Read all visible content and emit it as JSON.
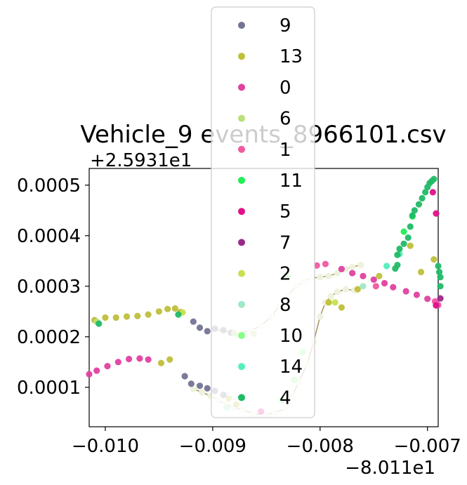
{
  "chart_data": {
    "type": "scatter",
    "title": "Vehicle_9 events_8966101.csv",
    "x_offset_label": "−8.011e1",
    "y_offset_label": "+2.5931e1",
    "xlim": [
      -0.01015,
      -0.0069
    ],
    "ylim": [
      2.2e-05,
      0.000533
    ],
    "x_ticks": [
      {
        "value": -0.01,
        "label": "−0.010"
      },
      {
        "value": -0.009,
        "label": "−0.009"
      },
      {
        "value": -0.008,
        "label": "−0.008"
      },
      {
        "value": -0.007,
        "label": "−0.007"
      }
    ],
    "y_ticks": [
      {
        "value": 0.0001,
        "label": "0.0001"
      },
      {
        "value": 0.0002,
        "label": "0.0002"
      },
      {
        "value": 0.0003,
        "label": "0.0003"
      },
      {
        "value": 0.0004,
        "label": "0.0004"
      },
      {
        "value": 0.0005,
        "label": "0.0005"
      }
    ],
    "grid": false,
    "legend_position": "top-center",
    "route_line_color": "#a89a6a",
    "series": [
      {
        "name": "9",
        "color": "#737394",
        "points": [
          [
            -0.00883,
            0.000208
          ],
          [
            -0.0089,
            0.000213
          ],
          [
            -0.00898,
            0.000216
          ],
          [
            -0.00905,
            0.000211
          ],
          [
            -0.00912,
            0.000218
          ],
          [
            -0.00918,
            0.00023
          ],
          [
            -0.00926,
            0.000122
          ],
          [
            -0.0092,
            0.000107
          ],
          [
            -0.00912,
            0.000103
          ],
          [
            -0.00905,
            9.8e-05
          ],
          [
            -0.00898,
            9.3e-05
          ],
          [
            -0.0089,
            8.5e-05
          ]
        ]
      },
      {
        "name": "13",
        "color": "#bfbf3a",
        "points": [
          [
            -0.0101,
            0.000233
          ],
          [
            -0.01,
            0.000238
          ],
          [
            -0.0099,
            0.000238
          ],
          [
            -0.0098,
            0.00024
          ],
          [
            -0.0097,
            0.000241
          ],
          [
            -0.0096,
            0.000244
          ],
          [
            -0.0095,
            0.00025
          ],
          [
            -0.00942,
            0.000255
          ],
          [
            -0.00935,
            0.000256
          ],
          [
            -0.0093,
            0.000249
          ],
          [
            -0.0094,
            0.000155
          ],
          [
            -0.00948,
            0.000148
          ],
          [
            -0.00885,
            7.8e-05
          ],
          [
            -0.00878,
            6.6e-05
          ],
          [
            -0.00792,
            0.000268
          ],
          [
            -0.0078,
            0.000258
          ],
          [
            -0.00765,
            0.000294
          ],
          [
            -0.00745,
            0.00032
          ],
          [
            -0.00716,
            0.00038
          ],
          [
            -0.00706,
            0.000328
          ],
          [
            -0.00694,
            0.000353
          ]
        ]
      },
      {
        "name": "0",
        "color": "#e040a0",
        "points": [
          [
            -0.01015,
            0.000126
          ],
          [
            -0.01008,
            0.000133
          ],
          [
            -0.00998,
            0.000142
          ],
          [
            -0.00988,
            0.00015
          ],
          [
            -0.00978,
            0.000156
          ],
          [
            -0.00968,
            0.000157
          ],
          [
            -0.0096,
            0.000155
          ],
          [
            -0.0078,
            0.000334
          ],
          [
            -0.0077,
            0.000326
          ],
          [
            -0.0076,
            0.00032
          ],
          [
            -0.0075,
            0.000313
          ],
          [
            -0.0074,
            0.000306
          ],
          [
            -0.00732,
            0.000298
          ],
          [
            -0.0072,
            0.00029
          ],
          [
            -0.0071,
            0.000283
          ],
          [
            -0.007,
            0.000275
          ],
          [
            -0.00692,
            0.000268
          ]
        ]
      },
      {
        "name": "6",
        "color": "#b9e07a",
        "points": [
          [
            -0.01008,
            0.00023
          ],
          [
            -0.0088,
            0.000207
          ],
          [
            -0.00862,
            0.000206
          ]
        ]
      },
      {
        "name": "1",
        "color": "#f05aa0",
        "points": [
          [
            -0.00803,
            0.000341
          ],
          [
            -0.00795,
            0.000344
          ],
          [
            -0.00748,
            0.0003
          ],
          [
            -0.00693,
            0.00027
          ],
          [
            -0.0069,
            0.000263
          ]
        ]
      },
      {
        "name": "11",
        "color": "#22ee55",
        "points": [
          [
            -0.00722,
            0.000408
          ],
          [
            -0.00714,
            0.000438
          ]
        ]
      },
      {
        "name": "5",
        "color": "#e0108a",
        "points": [
          [
            -0.00695,
            0.000486
          ],
          [
            -0.00692,
            0.000444
          ],
          [
            -0.00692,
            0.000262
          ],
          [
            -0.00855,
            5.2e-05
          ]
        ]
      },
      {
        "name": "7",
        "color": "#9a2a8a",
        "points": [
          [
            -0.00688,
            0.000276
          ]
        ]
      },
      {
        "name": "2",
        "color": "#c8e050",
        "points": [
          [
            -0.00928,
            0.000248
          ],
          [
            -0.00786,
            0.000268
          ]
        ]
      },
      {
        "name": "8",
        "color": "#a0e8c8",
        "points": [
          [
            -0.0076,
            0.0003
          ],
          [
            -0.00887,
            6e-05
          ]
        ]
      },
      {
        "name": "10",
        "color": "#88ff88",
        "points": [
          [
            -0.0083,
            0.00032
          ],
          [
            -0.00816,
            0.00017
          ],
          [
            -0.00824,
            0.000115
          ],
          [
            -0.00836,
            7.5e-05
          ]
        ]
      },
      {
        "name": "14",
        "color": "#55eebb",
        "points": [
          [
            -0.00738,
            0.00034
          ],
          [
            -0.00726,
            0.000364
          ]
        ]
      },
      {
        "name": "4",
        "color": "#20bb66",
        "points": [
          [
            -0.01006,
            0.000226
          ],
          [
            -0.00932,
            0.000244
          ],
          [
            -0.0073,
            0.000335
          ],
          [
            -0.00728,
            0.000362
          ],
          [
            -0.00726,
            0.000374
          ],
          [
            -0.00722,
            0.000384
          ],
          [
            -0.00718,
            0.000396
          ],
          [
            -0.00716,
            0.000418
          ],
          [
            -0.00714,
            0.00044
          ],
          [
            -0.00712,
            0.00045
          ],
          [
            -0.00708,
            0.000462
          ],
          [
            -0.00705,
            0.000474
          ],
          [
            -0.00702,
            0.000486
          ],
          [
            -0.007,
            0.000496
          ],
          [
            -0.00698,
            0.000504
          ],
          [
            -0.00696,
            0.000508
          ],
          [
            -0.00694,
            0.000512
          ],
          [
            -0.0069,
            0.00034
          ],
          [
            -0.00689,
            0.000328
          ],
          [
            -0.00688,
            0.000318
          ],
          [
            -0.00688,
            0.0003
          ],
          [
            -0.00728,
            0.000342
          ]
        ]
      }
    ],
    "background_points_color": "#eef2dc",
    "background_points": [
      [
        -0.00898,
        0.000214
      ],
      [
        -0.00875,
        0.000208
      ],
      [
        -0.00865,
        0.000212
      ],
      [
        -0.00855,
        0.000222
      ],
      [
        -0.00845,
        0.00024
      ],
      [
        -0.00838,
        0.000262
      ],
      [
        -0.0083,
        0.000282
      ],
      [
        -0.00822,
        0.0003
      ],
      [
        -0.00815,
        0.00031
      ],
      [
        -0.00808,
        0.000316
      ],
      [
        -0.008,
        0.000318
      ],
      [
        -0.00792,
        0.00032
      ],
      [
        -0.00784,
        0.000326
      ],
      [
        -0.00776,
        0.000334
      ],
      [
        -0.0077,
        0.000338
      ],
      [
        -0.00762,
        0.000342
      ],
      [
        -0.00918,
        9.7e-05
      ],
      [
        -0.0091,
        9e-05
      ],
      [
        -0.00902,
        8.3e-05
      ],
      [
        -0.00895,
        7.5e-05
      ],
      [
        -0.00888,
        6.7e-05
      ],
      [
        -0.0088,
        6e-05
      ],
      [
        -0.00872,
        5.5e-05
      ],
      [
        -0.00862,
        4.8e-05
      ],
      [
        -0.00852,
        4.6e-05
      ],
      [
        -0.00842,
        5e-05
      ],
      [
        -0.00832,
        5.8e-05
      ],
      [
        -0.00826,
        8.2e-05
      ],
      [
        -0.0082,
        0.00011
      ],
      [
        -0.00812,
        0.000145
      ],
      [
        -0.00806,
        0.00019
      ],
      [
        -0.008,
        0.00024
      ],
      [
        -0.00795,
        0.000268
      ],
      [
        -0.0079,
        0.00028
      ],
      [
        -0.00784,
        0.000289
      ],
      [
        -0.00776,
        0.000294
      ],
      [
        -0.00768,
        0.000292
      ]
    ]
  }
}
